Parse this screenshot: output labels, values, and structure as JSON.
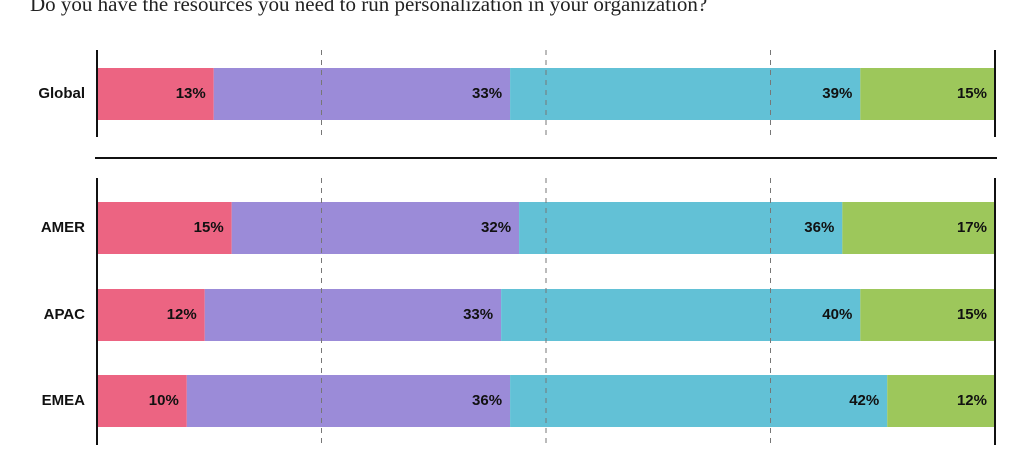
{
  "chart_data": {
    "type": "stacked-bar-horizontal",
    "title": "Do you have the resources you need to run personalization in your organization?",
    "categories": [
      "Global",
      "AMER",
      "APAC",
      "EMEA"
    ],
    "series": [
      {
        "color": "#ec6482",
        "values": [
          13,
          15,
          12,
          10
        ],
        "value_labels": [
          "13%",
          "15%",
          "12%",
          "10%"
        ]
      },
      {
        "color": "#9b8bd8",
        "values": [
          33,
          32,
          33,
          36
        ],
        "value_labels": [
          "33%",
          "32%",
          "33%",
          "36%"
        ]
      },
      {
        "color": "#62c1d6",
        "values": [
          39,
          36,
          40,
          42
        ],
        "value_labels": [
          "39%",
          "36%",
          "40%",
          "42%"
        ]
      },
      {
        "color": "#9dc75b",
        "values": [
          15,
          17,
          15,
          12
        ],
        "value_labels": [
          "15%",
          "17%",
          "15%",
          "12%"
        ]
      }
    ],
    "xlim": [
      0,
      100
    ],
    "xticks": [
      0,
      25,
      50,
      75,
      100
    ],
    "grid": true
  }
}
